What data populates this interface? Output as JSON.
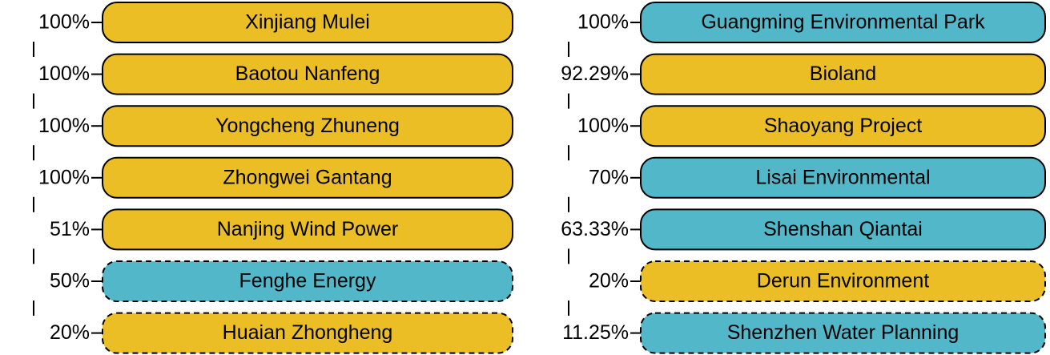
{
  "left": [
    {
      "percent": "100%",
      "label": "Xinjiang Mulei",
      "color": "#ebbe26",
      "dashed": false
    },
    {
      "percent": "100%",
      "label": "Baotou Nanfeng",
      "color": "#ebbe26",
      "dashed": false
    },
    {
      "percent": "100%",
      "label": "Yongcheng Zhuneng",
      "color": "#ebbe26",
      "dashed": false
    },
    {
      "percent": "100%",
      "label": "Zhongwei Gantang",
      "color": "#ebbe26",
      "dashed": false
    },
    {
      "percent": "51%",
      "label": "Nanjing Wind Power",
      "color": "#ebbe26",
      "dashed": false
    },
    {
      "percent": "50%",
      "label": "Fenghe Energy",
      "color": "#52b8c9",
      "dashed": true
    },
    {
      "percent": "20%",
      "label": "Huaian Zhongheng",
      "color": "#ebbe26",
      "dashed": true
    }
  ],
  "right": [
    {
      "percent": "100%",
      "label": "Guangming Environmental Park",
      "color": "#52b8c9",
      "dashed": false
    },
    {
      "percent": "92.29%",
      "label": "Bioland",
      "color": "#ebbe26",
      "dashed": false
    },
    {
      "percent": "100%",
      "label": "Shaoyang Project",
      "color": "#ebbe26",
      "dashed": false
    },
    {
      "percent": "70%",
      "label": "Lisai Environmental",
      "color": "#52b8c9",
      "dashed": false
    },
    {
      "percent": "63.33%",
      "label": "Shenshan Qiantai",
      "color": "#52b8c9",
      "dashed": false
    },
    {
      "percent": "20%",
      "label": "Derun Environment",
      "color": "#ebbe26",
      "dashed": true
    },
    {
      "percent": "11.25%",
      "label": "Shenzhen Water Planning",
      "color": "#52b8c9",
      "dashed": true
    }
  ]
}
